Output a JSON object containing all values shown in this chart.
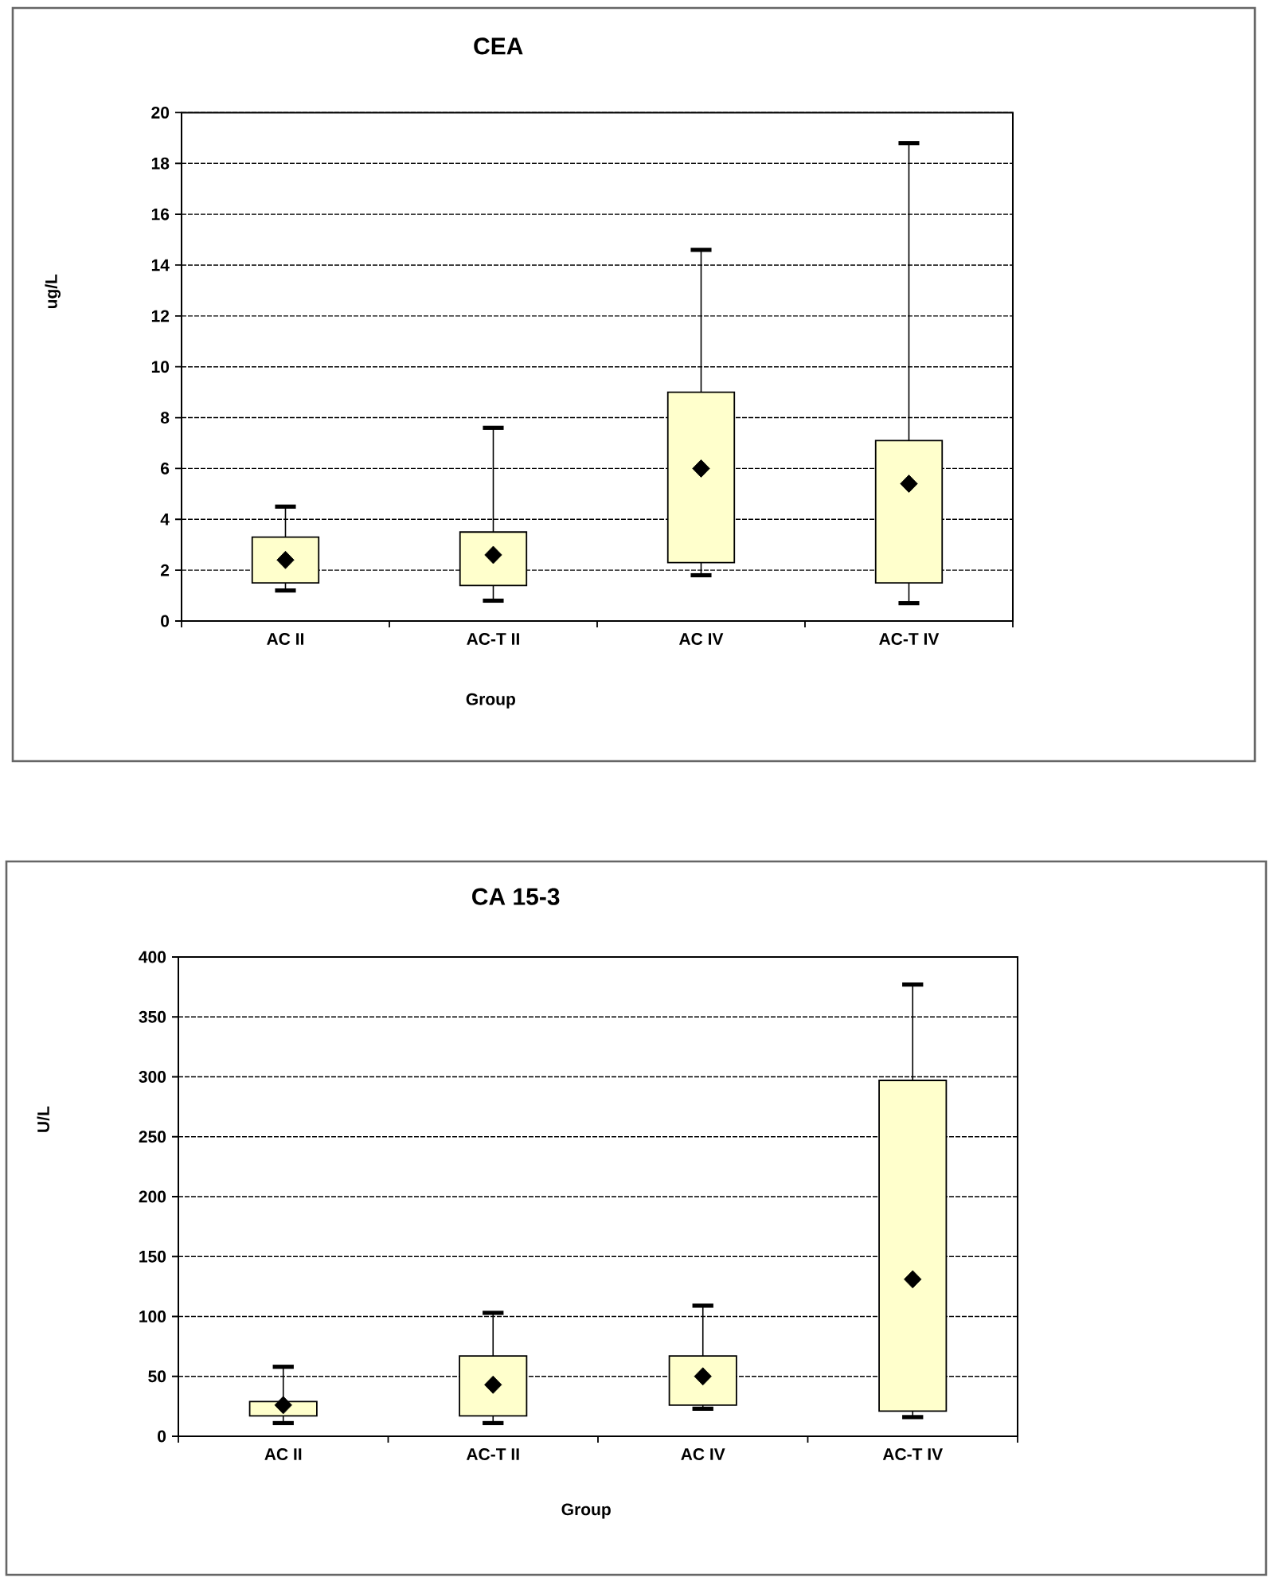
{
  "chart_data": [
    {
      "type": "box",
      "title": "CEA",
      "xlabel": "Group",
      "ylabel": "ug/L",
      "categories": [
        "AC II",
        "AC-T II",
        "AC IV",
        "AC-T IV"
      ],
      "series": [
        {
          "color": "#ffffcc",
          "boxes": [
            {
              "low": 1.2,
              "q1": 1.5,
              "median": 2.4,
              "q3": 3.3,
              "high": 4.5
            },
            {
              "low": 0.8,
              "q1": 1.4,
              "median": 2.6,
              "q3": 3.5,
              "high": 7.6
            },
            {
              "low": 1.8,
              "q1": 2.3,
              "median": 6.0,
              "q3": 9.0,
              "high": 14.6
            },
            {
              "low": 0.7,
              "q1": 1.5,
              "median": 5.4,
              "q3": 7.1,
              "high": 18.8
            }
          ]
        }
      ],
      "ylim": [
        0,
        20
      ],
      "yticks": [
        0,
        2,
        4,
        6,
        8,
        10,
        12,
        14,
        16,
        18,
        20
      ],
      "grid": "y",
      "marker": "diamond"
    },
    {
      "type": "box",
      "title": "CA 15-3",
      "xlabel": "Group",
      "ylabel": "U/L",
      "categories": [
        "AC II",
        "AC-T II",
        "AC IV",
        "AC-T IV"
      ],
      "series": [
        {
          "color": "#ffffcc",
          "boxes": [
            {
              "low": 11,
              "q1": 17,
              "median": 26,
              "q3": 29,
              "high": 58
            },
            {
              "low": 11,
              "q1": 17,
              "median": 43,
              "q3": 67,
              "high": 103
            },
            {
              "low": 23,
              "q1": 26,
              "median": 50,
              "q3": 67,
              "high": 109
            },
            {
              "low": 16,
              "q1": 21,
              "median": 131,
              "q3": 297,
              "high": 377
            }
          ]
        }
      ],
      "ylim": [
        0,
        400
      ],
      "yticks": [
        0,
        50,
        100,
        150,
        200,
        250,
        300,
        350,
        400
      ],
      "grid": "y",
      "marker": "diamond"
    }
  ]
}
